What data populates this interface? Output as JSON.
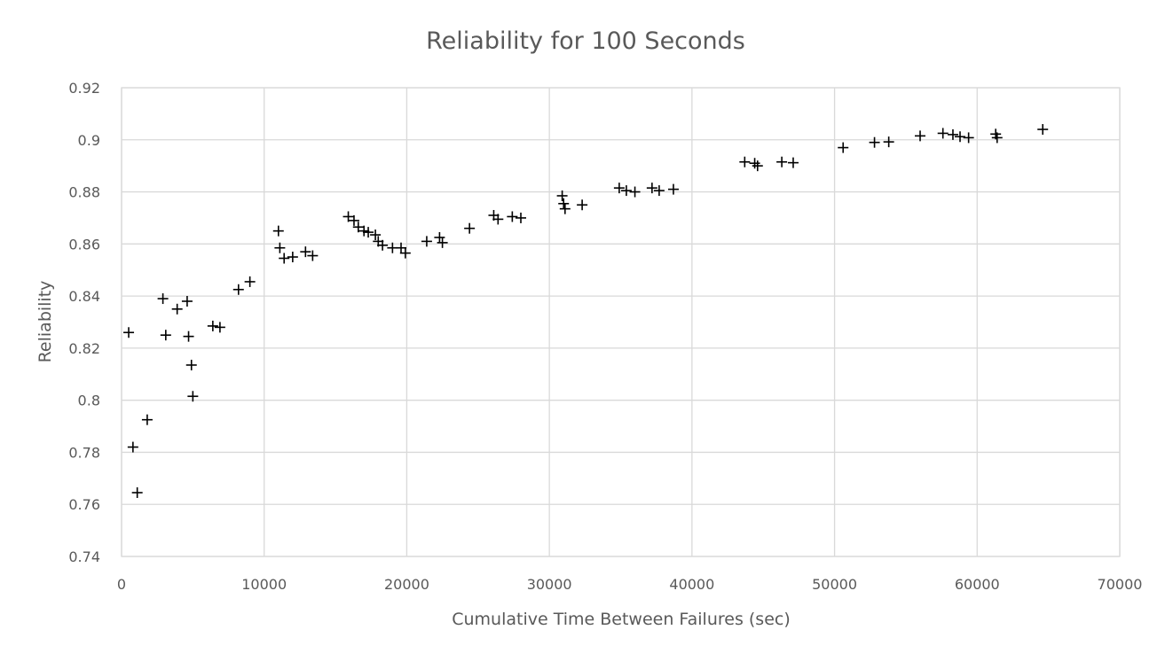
{
  "chart_data": {
    "type": "scatter",
    "title": "Reliability for 100 Seconds",
    "xlabel": "Cumulative Time Between Failures (sec)",
    "ylabel": "Reliability",
    "xlim": [
      0,
      70000
    ],
    "ylim": [
      0.74,
      0.92
    ],
    "xticks": [
      0,
      10000,
      20000,
      30000,
      40000,
      50000,
      60000,
      70000
    ],
    "yticks": [
      0.74,
      0.76,
      0.78,
      0.8,
      0.82,
      0.84,
      0.86,
      0.88,
      0.9,
      0.92
    ],
    "xtick_labels": [
      "0",
      "10000",
      "20000",
      "30000",
      "40000",
      "50000",
      "60000",
      "70000"
    ],
    "ytick_labels": [
      "0.74",
      "0.76",
      "0.78",
      "0.8",
      "0.82",
      "0.84",
      "0.86",
      "0.88",
      "0.9",
      "0.92"
    ],
    "grid": true,
    "legend": "none",
    "marker": "plus",
    "marker_color": "#000000",
    "points": [
      {
        "x": 500,
        "y": 0.826
      },
      {
        "x": 800,
        "y": 0.782
      },
      {
        "x": 1100,
        "y": 0.7645
      },
      {
        "x": 1800,
        "y": 0.7925
      },
      {
        "x": 2900,
        "y": 0.839
      },
      {
        "x": 3100,
        "y": 0.825
      },
      {
        "x": 3900,
        "y": 0.835
      },
      {
        "x": 4600,
        "y": 0.838
      },
      {
        "x": 4700,
        "y": 0.8245
      },
      {
        "x": 4900,
        "y": 0.8135
      },
      {
        "x": 5000,
        "y": 0.8015
      },
      {
        "x": 6400,
        "y": 0.8285
      },
      {
        "x": 6900,
        "y": 0.828
      },
      {
        "x": 8200,
        "y": 0.8425
      },
      {
        "x": 9000,
        "y": 0.8455
      },
      {
        "x": 11000,
        "y": 0.865
      },
      {
        "x": 11100,
        "y": 0.8585
      },
      {
        "x": 11400,
        "y": 0.8545
      },
      {
        "x": 12000,
        "y": 0.855
      },
      {
        "x": 12900,
        "y": 0.857
      },
      {
        "x": 13400,
        "y": 0.8555
      },
      {
        "x": 15900,
        "y": 0.8705
      },
      {
        "x": 16300,
        "y": 0.869
      },
      {
        "x": 16600,
        "y": 0.8665
      },
      {
        "x": 17000,
        "y": 0.865
      },
      {
        "x": 17300,
        "y": 0.8645
      },
      {
        "x": 17800,
        "y": 0.8635
      },
      {
        "x": 18000,
        "y": 0.861
      },
      {
        "x": 18300,
        "y": 0.8595
      },
      {
        "x": 19000,
        "y": 0.8585
      },
      {
        "x": 19600,
        "y": 0.8585
      },
      {
        "x": 19900,
        "y": 0.8565
      },
      {
        "x": 21400,
        "y": 0.861
      },
      {
        "x": 22300,
        "y": 0.8625
      },
      {
        "x": 22500,
        "y": 0.8605
      },
      {
        "x": 24400,
        "y": 0.866
      },
      {
        "x": 26100,
        "y": 0.871
      },
      {
        "x": 26400,
        "y": 0.8695
      },
      {
        "x": 27400,
        "y": 0.8705
      },
      {
        "x": 28000,
        "y": 0.87
      },
      {
        "x": 30900,
        "y": 0.8785
      },
      {
        "x": 31000,
        "y": 0.8755
      },
      {
        "x": 31100,
        "y": 0.8735
      },
      {
        "x": 32300,
        "y": 0.875
      },
      {
        "x": 34900,
        "y": 0.8815
      },
      {
        "x": 35400,
        "y": 0.8805
      },
      {
        "x": 36000,
        "y": 0.88
      },
      {
        "x": 37200,
        "y": 0.8815
      },
      {
        "x": 37700,
        "y": 0.8805
      },
      {
        "x": 38700,
        "y": 0.881
      },
      {
        "x": 43700,
        "y": 0.8915
      },
      {
        "x": 44400,
        "y": 0.891
      },
      {
        "x": 44600,
        "y": 0.89
      },
      {
        "x": 46300,
        "y": 0.8915
      },
      {
        "x": 47100,
        "y": 0.8912
      },
      {
        "x": 50600,
        "y": 0.897
      },
      {
        "x": 52800,
        "y": 0.899
      },
      {
        "x": 53800,
        "y": 0.8992
      },
      {
        "x": 56000,
        "y": 0.9015
      },
      {
        "x": 57600,
        "y": 0.9025
      },
      {
        "x": 58300,
        "y": 0.902
      },
      {
        "x": 58800,
        "y": 0.9012
      },
      {
        "x": 59400,
        "y": 0.9008
      },
      {
        "x": 61300,
        "y": 0.9022
      },
      {
        "x": 61400,
        "y": 0.9008
      },
      {
        "x": 64600,
        "y": 0.904
      }
    ]
  }
}
